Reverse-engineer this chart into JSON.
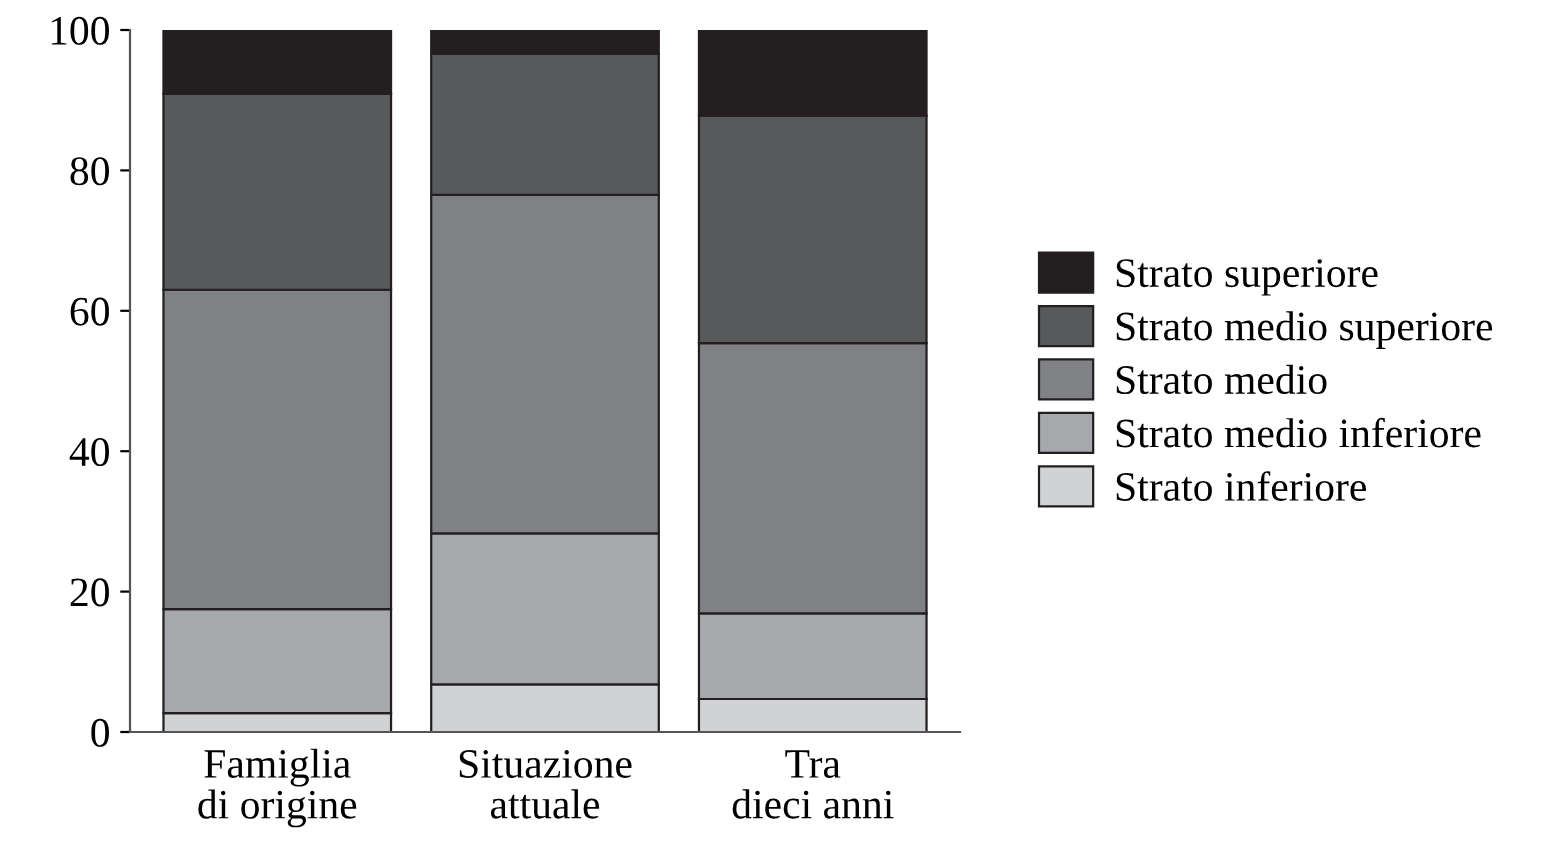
{
  "chart_data": {
    "type": "bar",
    "stacked": true,
    "categories": [
      "Famiglia\ndi origine",
      "Situazione\nattuale",
      "Tra\ndieci anni"
    ],
    "series": [
      {
        "name": "Strato inferiore",
        "color": "#d1d2d4",
        "values": [
          2.7,
          6.8,
          4.7
        ]
      },
      {
        "name": "Strato medio inferiore",
        "color": "#a7a8ab",
        "values": [
          14.8,
          21.5,
          12.2
        ]
      },
      {
        "name": "Strato medio",
        "color": "#808184",
        "values": [
          45.5,
          48.2,
          38.5
        ]
      },
      {
        "name": "Strato medio superiore",
        "color": "#58595b",
        "values": [
          27.9,
          20.1,
          32.4
        ]
      },
      {
        "name": "Strato superiore",
        "color": "#231f20",
        "values": [
          9.1,
          3.4,
          12.2
        ]
      }
    ],
    "ylim": [
      0,
      100
    ],
    "yticks": [
      0,
      20,
      40,
      60,
      80,
      100
    ],
    "grid": false,
    "legend": "right"
  }
}
